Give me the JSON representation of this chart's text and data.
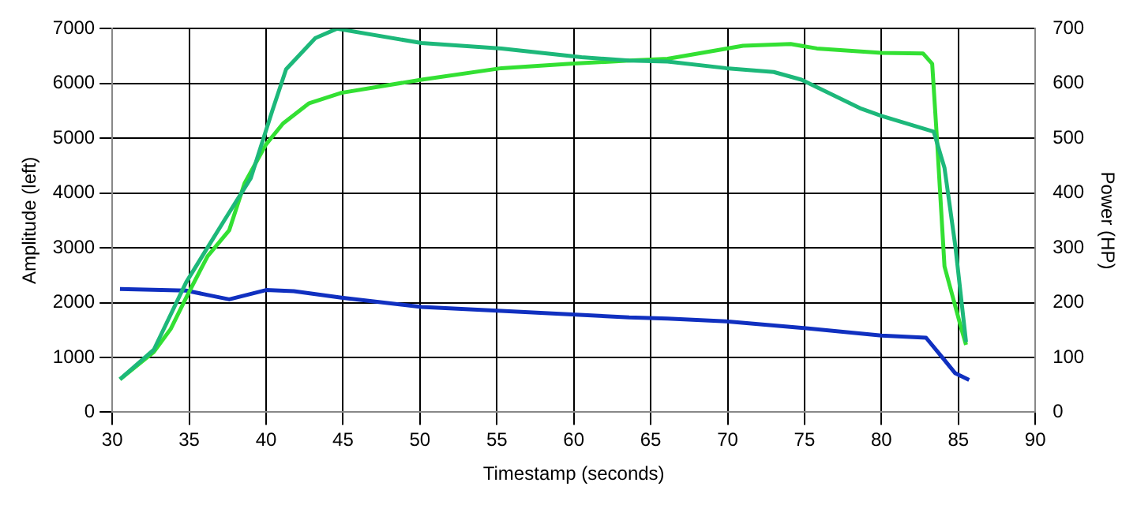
{
  "chart_data": {
    "type": "line",
    "xlabel": "Timestamp (seconds)",
    "ylabel": "Amplitude (left)",
    "y2label": "Power (HP)",
    "xlim": [
      30,
      90
    ],
    "xticks": [
      30,
      35,
      40,
      45,
      50,
      55,
      60,
      65,
      70,
      75,
      80,
      85,
      90
    ],
    "ylim": [
      0,
      7000
    ],
    "yticks": [
      0,
      1000,
      2000,
      3000,
      4000,
      5000,
      6000,
      7000
    ],
    "y2lim": [
      0,
      700
    ],
    "y2ticks": [
      0,
      100,
      200,
      300,
      400,
      500,
      600,
      700
    ],
    "grid": true,
    "legend": false,
    "marker": "none",
    "line_style": "solid",
    "series": [
      {
        "color": "#1db87a",
        "x": [
          30.5,
          32.7,
          34.8,
          37.3,
          39.0,
          40.4,
          41.3,
          43.2,
          44.6,
          50.1,
          55.3,
          60.5,
          63.6,
          66.1,
          69.9,
          73.0,
          74.8,
          78.6,
          80.0,
          83.4,
          84.1,
          84.8,
          85.5
        ],
        "values": [
          600,
          1140,
          2370,
          3510,
          4270,
          5500,
          6260,
          6830,
          7000,
          6740,
          6640,
          6480,
          6420,
          6400,
          6280,
          6210,
          6070,
          5550,
          5410,
          5120,
          4460,
          3040,
          1280
        ]
      },
      {
        "color": "#33e033",
        "x": [
          30.5,
          32.7,
          33.8,
          34.8,
          36.2,
          37.6,
          38.6,
          40.0,
          41.1,
          42.8,
          44.9,
          50.1,
          55.3,
          59.8,
          63.6,
          66.1,
          71.0,
          74.1,
          75.8,
          80.0,
          82.7,
          83.3,
          83.6,
          84.1,
          85.2,
          85.5
        ],
        "values": [
          600,
          1100,
          1520,
          2090,
          2850,
          3320,
          4180,
          4890,
          5270,
          5640,
          5830,
          6070,
          6280,
          6360,
          6420,
          6450,
          6690,
          6720,
          6640,
          6560,
          6550,
          6360,
          5030,
          2660,
          1520,
          1230
        ]
      },
      {
        "color": "#1030c0",
        "x": [
          30.5,
          34.8,
          37.6,
          40.0,
          41.8,
          44.9,
          50.1,
          55.3,
          63.6,
          66.1,
          69.9,
          74.8,
          80.0,
          82.9,
          84.1,
          84.8,
          85.7
        ],
        "values": [
          2250,
          2220,
          2060,
          2230,
          2210,
          2090,
          1920,
          1850,
          1730,
          1710,
          1660,
          1540,
          1400,
          1360,
          950,
          710,
          590
        ]
      }
    ]
  }
}
